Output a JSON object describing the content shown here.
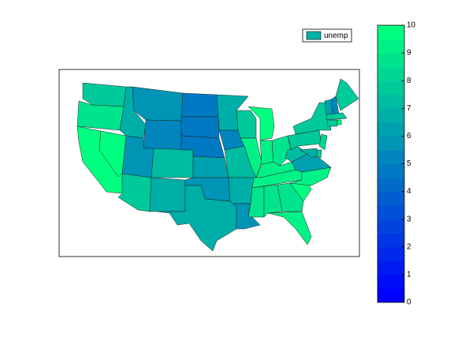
{
  "chart_data": {
    "type": "choropleth",
    "series": [
      {
        "name": "unemp",
        "color": "#00b3a6",
        "values": [
          7.5,
          8.5,
          9.5,
          9.5,
          6.5,
          5.5,
          5,
          5.5,
          7.5,
          7,
          6.5,
          4.5,
          4.5,
          4.5,
          6,
          5.5,
          6.5,
          6.5,
          5,
          7,
          6.5,
          5.5,
          7.5,
          9,
          10,
          9,
          8.5,
          9,
          9,
          8.5,
          8.5,
          8.5,
          9,
          9.5,
          9,
          6,
          7,
          7.5,
          7.5,
          8,
          7.5,
          6.5,
          6,
          5,
          7.5,
          7.5,
          7.5,
          10
        ]
      }
    ],
    "colormap": "winter",
    "levels": 20,
    "clim": [
      0,
      10
    ],
    "cticks": [
      0,
      1,
      2,
      3,
      4,
      5,
      6,
      7,
      8,
      9,
      10
    ]
  }
}
